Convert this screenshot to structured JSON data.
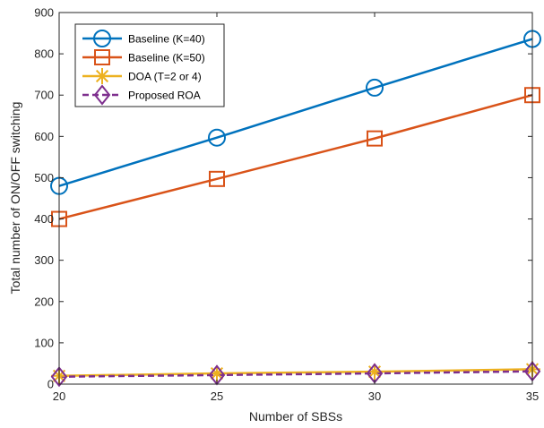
{
  "chart_data": {
    "type": "line",
    "title": "",
    "xlabel": "Number of SBSs",
    "ylabel": "Total number of ON/OFF switching",
    "x": [
      20,
      25,
      30,
      35
    ],
    "xlim": [
      20,
      35
    ],
    "ylim": [
      0,
      900
    ],
    "xticks": [
      "20",
      "25",
      "30",
      "35"
    ],
    "yticks": [
      "0",
      "100",
      "200",
      "300",
      "400",
      "500",
      "600",
      "700",
      "800",
      "900"
    ],
    "grid": false,
    "legend_position": "top-left",
    "series": [
      {
        "name": "Baseline (K=40)",
        "values": [
          480,
          597,
          718,
          836
        ],
        "color": "#0072BD",
        "marker": "circle",
        "line": "solid"
      },
      {
        "name": "Baseline (K=50)",
        "values": [
          400,
          497,
          595,
          700
        ],
        "color": "#D95319",
        "marker": "square",
        "line": "solid"
      },
      {
        "name": "DOA (T=2 or 4)",
        "values": [
          20,
          26,
          30,
          36
        ],
        "color": "#EDB120",
        "marker": "asterisk",
        "line": "solid"
      },
      {
        "name": "Proposed ROA",
        "values": [
          18,
          22,
          26,
          31
        ],
        "color": "#7E2F8E",
        "marker": "diamond",
        "line": "dashed"
      }
    ]
  }
}
